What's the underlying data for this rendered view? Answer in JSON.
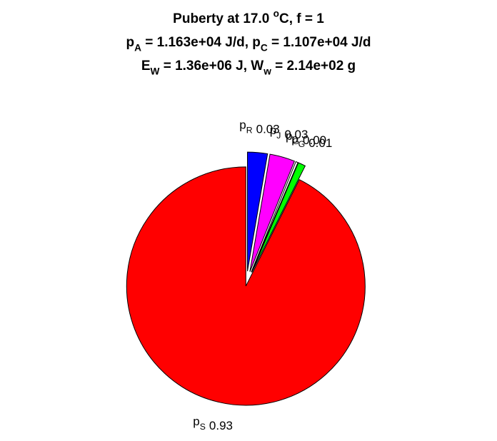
{
  "chart_data": {
    "type": "pie",
    "title": [
      [
        "Puberty at 17.0 ",
        {
          "text": "o",
          "script": "sup"
        },
        "C, f = 1"
      ],
      [
        "p",
        {
          "text": "A",
          "script": "sub"
        },
        " = 1.163e+04 J/d,  p",
        {
          "text": "C",
          "script": "sub"
        },
        " = 1.107e+04 J/d"
      ],
      [
        "E",
        {
          "text": "W",
          "script": "sub"
        },
        " = 1.36e+06 J, W",
        {
          "text": "w",
          "script": "sub"
        },
        " = 2.14e+02 g"
      ]
    ],
    "categories": [
      [
        "p",
        {
          "text": "R",
          "script": "sub"
        }
      ],
      [
        "p",
        {
          "text": "J",
          "script": "sub"
        }
      ],
      [
        "p",
        {
          "text": "G",
          "script": "sub"
        }
      ],
      [
        "p",
        {
          "text": "G",
          "script": "sub"
        }
      ],
      [
        "p",
        {
          "text": "S",
          "script": "sub"
        }
      ]
    ],
    "values": [
      0.027,
      0.034,
      0.003,
      0.01,
      0.926
    ],
    "value_labels": [
      "0.03",
      "0.03",
      "0.00",
      "0.01",
      "0.93"
    ],
    "colors": [
      "#0000ff",
      "#ff00ff",
      "#ffffff",
      "#00ff00",
      "#ff0000"
    ],
    "explode": [
      true,
      true,
      true,
      true,
      false
    ],
    "direction": "clockwise"
  }
}
